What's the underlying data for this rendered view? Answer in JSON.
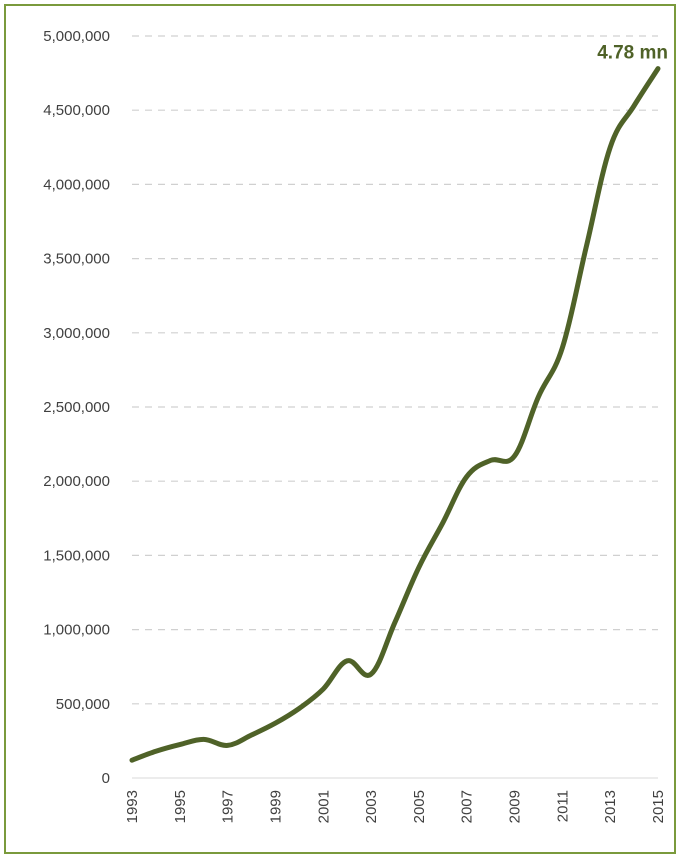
{
  "chart_data": {
    "type": "line",
    "title": "",
    "xlabel": "",
    "ylabel": "",
    "x_tick_labels": [
      "1993",
      "1995",
      "1997",
      "1999",
      "2001",
      "2003",
      "2005",
      "2007",
      "2009",
      "2011",
      "2013",
      "2015"
    ],
    "y_tick_labels": [
      "0",
      "500,000",
      "1,000,000",
      "1,500,000",
      "2,000,000",
      "2,500,000",
      "3,000,000",
      "3,500,000",
      "4,000,000",
      "4,500,000",
      "5,000,000"
    ],
    "ylim": [
      0,
      5000000
    ],
    "xlim": [
      1993,
      2015
    ],
    "grid": "horizontal-dashed",
    "line_color": "#4f6228",
    "end_label": "4.78 mn",
    "series": [
      {
        "x": [
          1993,
          1994,
          1995,
          1996,
          1997,
          1998,
          1999,
          2000,
          2001,
          2002,
          2003,
          2004,
          2005,
          2006,
          2007,
          2008,
          2009,
          2010,
          2011,
          2012,
          2013,
          2014,
          2015
        ],
        "values": [
          120000,
          180000,
          225000,
          260000,
          220000,
          290000,
          370000,
          470000,
          600000,
          790000,
          700000,
          1050000,
          1420000,
          1720000,
          2030000,
          2140000,
          2170000,
          2570000,
          2900000,
          3580000,
          4250000,
          4530000,
          4780000
        ]
      }
    ]
  }
}
